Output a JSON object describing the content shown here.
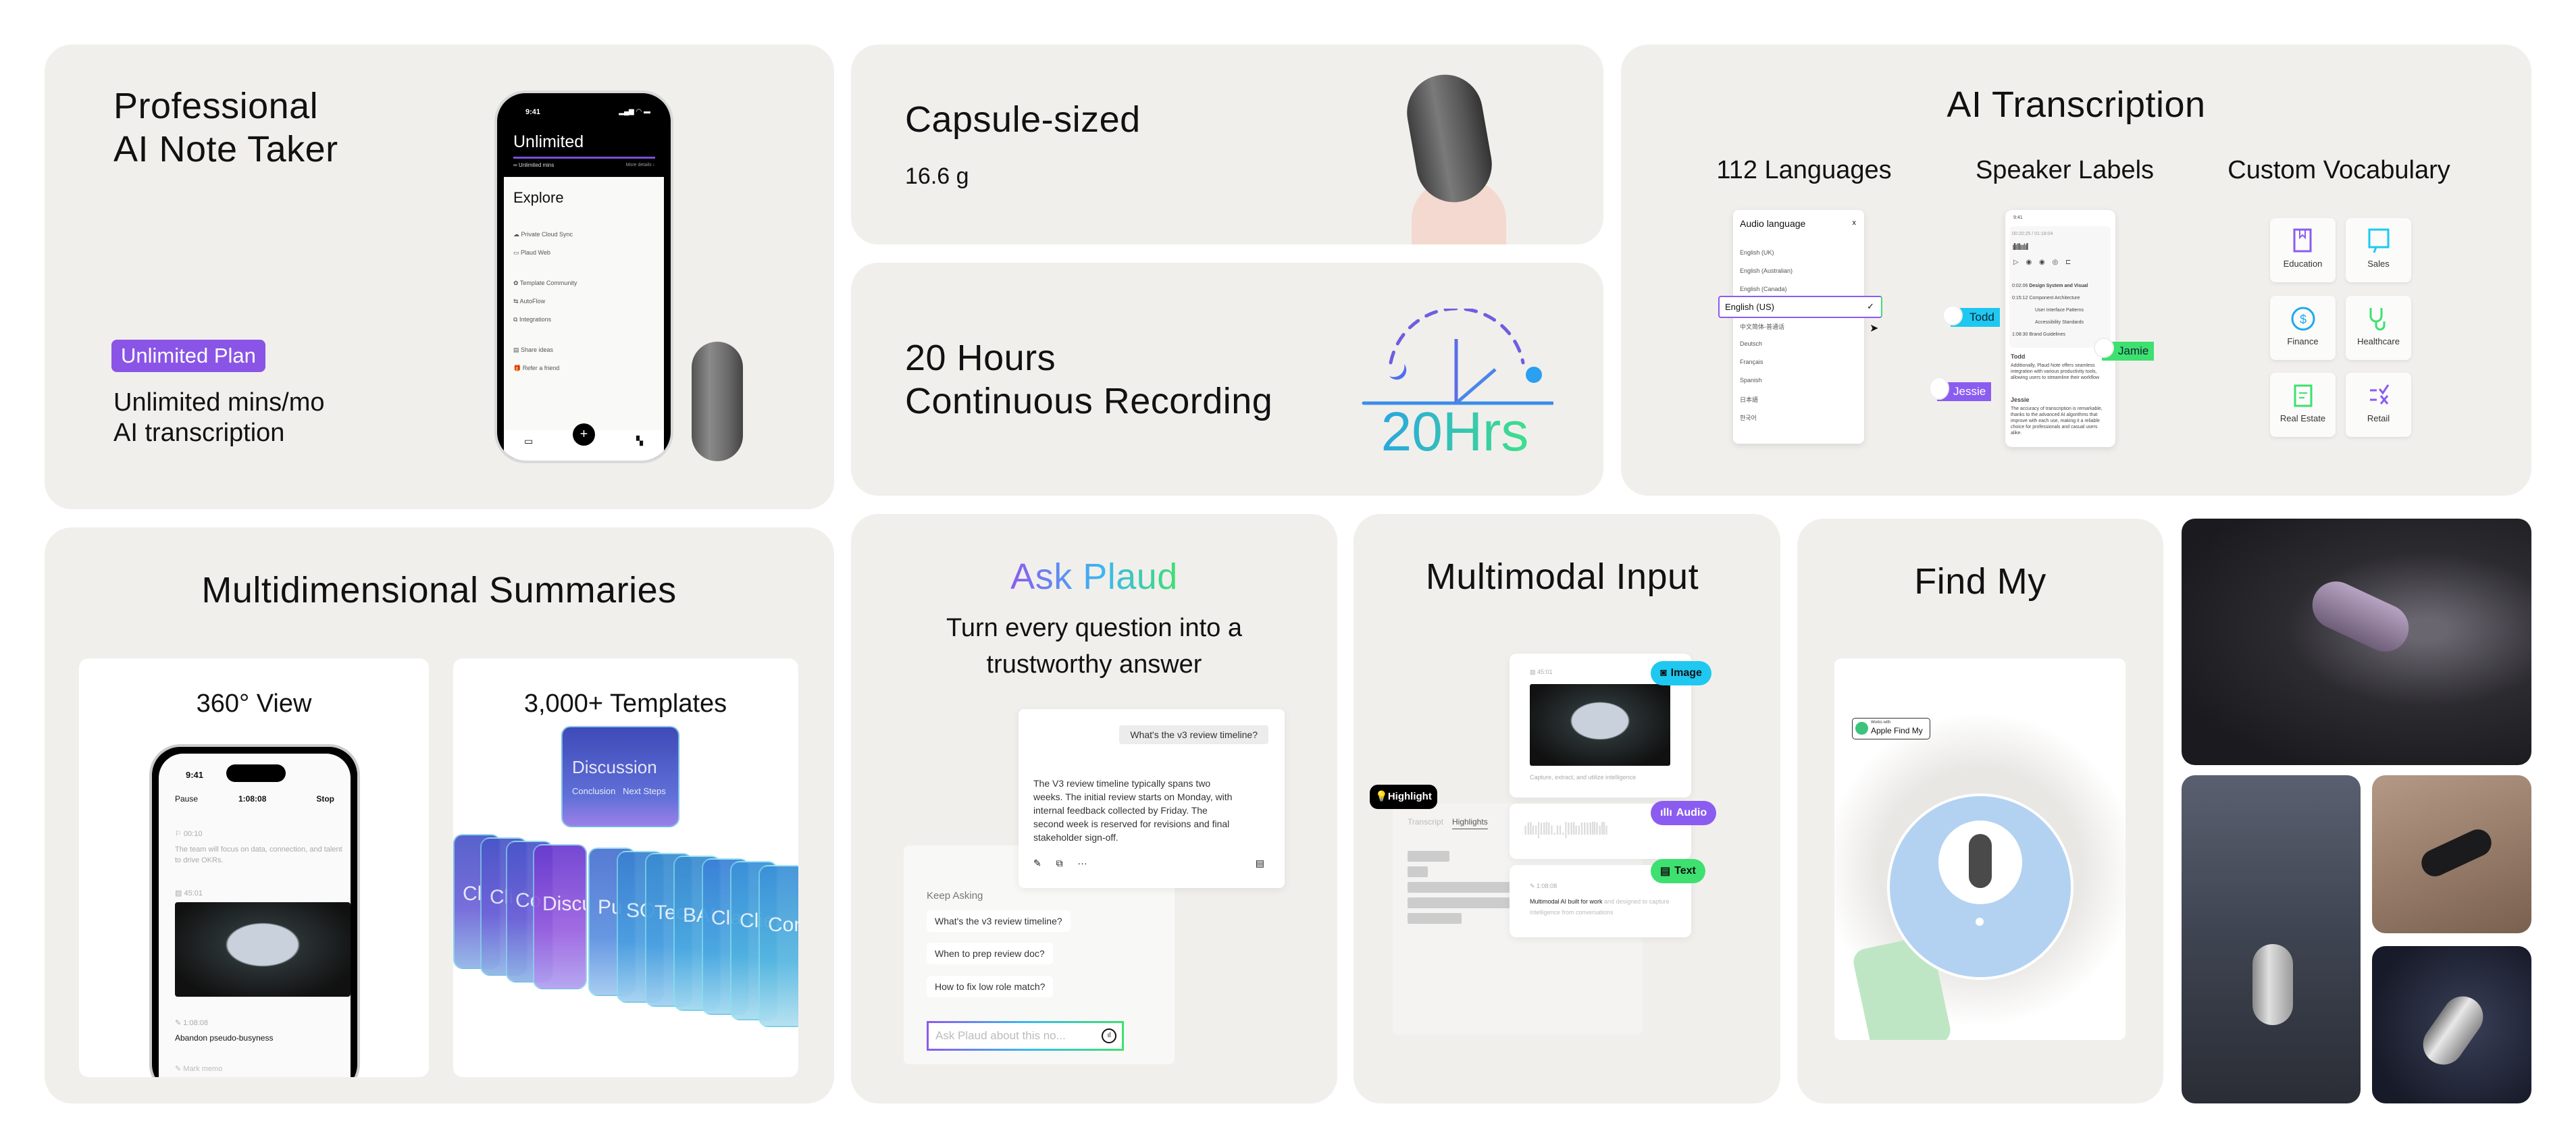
{
  "note_taker": {
    "title_line1": "Professional",
    "title_line2": "AI Note Taker",
    "plan_badge": "Unlimited Plan",
    "desc_line1": "Unlimited mins/mo",
    "desc_line2": "AI transcription",
    "phone": {
      "time": "9:41",
      "plan": "Unlimited",
      "mins": "∞ Unlimited mins",
      "more": "More details ›",
      "section": "Explore",
      "items": [
        "Private Cloud Sync",
        "Plaud Web",
        "Template Community",
        "AutoFlow",
        "Integrations",
        "Share ideas",
        "Refer a friend"
      ]
    }
  },
  "capsule": {
    "title": "Capsule-sized",
    "weight": "16.6 g"
  },
  "recording": {
    "title_line1": "20 Hours",
    "title_line2": "Continuous Recording",
    "graphic_label": "20Hrs"
  },
  "transcription": {
    "title": "AI Transcription",
    "languages_label": "112 Languages",
    "speakers_label": "Speaker Labels",
    "vocab_label": "Custom Vocabulary",
    "language_panel": {
      "title": "Audio language",
      "close": "x",
      "options": [
        "English (UK)",
        "English (Australian)",
        "English (Canada)",
        "English (US)",
        "中文简体-普通话",
        "Deutsch",
        "Français",
        "Spanish",
        "日本語",
        "한국어"
      ],
      "selected": "English (US)"
    },
    "speaker_phone": {
      "time": "9:41",
      "timecode": "00:20:25 / 01:18:04",
      "chapters": [
        {
          "t": "0:02:06",
          "label": "Design System and Visual"
        },
        {
          "t": "0:15:12",
          "label": "Component Architecture"
        },
        {
          "t": "",
          "label": "User Interface Patterns"
        },
        {
          "t": "",
          "label": "Accessibility Standards"
        },
        {
          "t": "1:08:30",
          "label": "Brand Guidelines"
        }
      ],
      "speaker1": "Todd",
      "text1": "Additionally, Plaud Note offers seamless integration with various productivity tools, allowing users to streamline their workflow",
      "speaker2": "Jessie",
      "text2": "The accuracy of transcription is remarkable, thanks to the advanced AI algorithms that improve with each use, making it a reliable choice for professionals and casual users alike.",
      "tags": [
        "Todd",
        "Jamie",
        "Jessie"
      ]
    },
    "vocab": [
      "Education",
      "Sales",
      "Finance",
      "Healthcare",
      "Real Estate",
      "Retail"
    ],
    "colors": {
      "todd": "#1ec8f0",
      "jamie": "#3ee070",
      "jessie": "#8b5cf0"
    }
  },
  "summaries": {
    "title": "Multidimensional Summaries",
    "view_label": "360° View",
    "templates_label": "3,000+ Templates",
    "phone": {
      "time": "9:41",
      "pause": "Pause",
      "timer": "1:08:08",
      "stop": "Stop",
      "flag_time": "00:10",
      "flag_text": "The team will focus on data, connection, and talent to drive OKRs.",
      "image_time": "45:01",
      "memo_time": "1:08:08",
      "memo_text": "Abandon pseudo-busyness",
      "mark_memo": "Mark memo"
    },
    "template_cards": [
      "Cl",
      "Cli Ass",
      "Co",
      "Discussi",
      "Pu",
      "SO",
      "Tec",
      "BAN",
      "Cla",
      "Clie Ass",
      "Con"
    ],
    "front_card": {
      "title": "Discussion",
      "row1a": "Conclusion",
      "row1b": "Next Steps"
    }
  },
  "ask": {
    "title": "Ask Plaud",
    "subtitle_line1": "Turn every question into a",
    "subtitle_line2": "trustworthy answer",
    "question": "What's the v3 review timeline?",
    "answer": "The V3 review timeline typically spans two weeks. The initial review starts on Monday, with internal feedback collected by Friday. The second week is reserved for revisions and final stakeholder sign-off.",
    "keep_asking": "Keep Asking",
    "suggestions": [
      "What's the v3 review timeline?",
      "When to prep review doc?",
      "How to fix low role match?"
    ],
    "input_placeholder": "Ask Plaud about this no..."
  },
  "multimodal": {
    "title": "Multimodal Input",
    "highlight": "Highlight",
    "tabs": [
      "Transcript",
      "Highlights"
    ],
    "image_time": "45:01",
    "image_caption": "Capture, extract, and utilize intelligence",
    "text_time": "1:08:08",
    "text_bold": "Multimodal AI built for work",
    "text_rest": " and designed to capture intelligence from conversations",
    "badges": {
      "image": "Image",
      "audio": "Audio",
      "text": "Text"
    },
    "colors": {
      "image": "#1ec8f0",
      "audio": "#8b5cf0",
      "text": "#3ee070"
    }
  },
  "find_my": {
    "title": "Find My",
    "badge_small": "Works with",
    "badge_large": "Apple Find My"
  },
  "colors": {
    "card_bg": "#f1efec",
    "plan_purple": "#8a55e6",
    "gradient_start": "#8b5cf0",
    "gradient_end": "#3ee070"
  }
}
